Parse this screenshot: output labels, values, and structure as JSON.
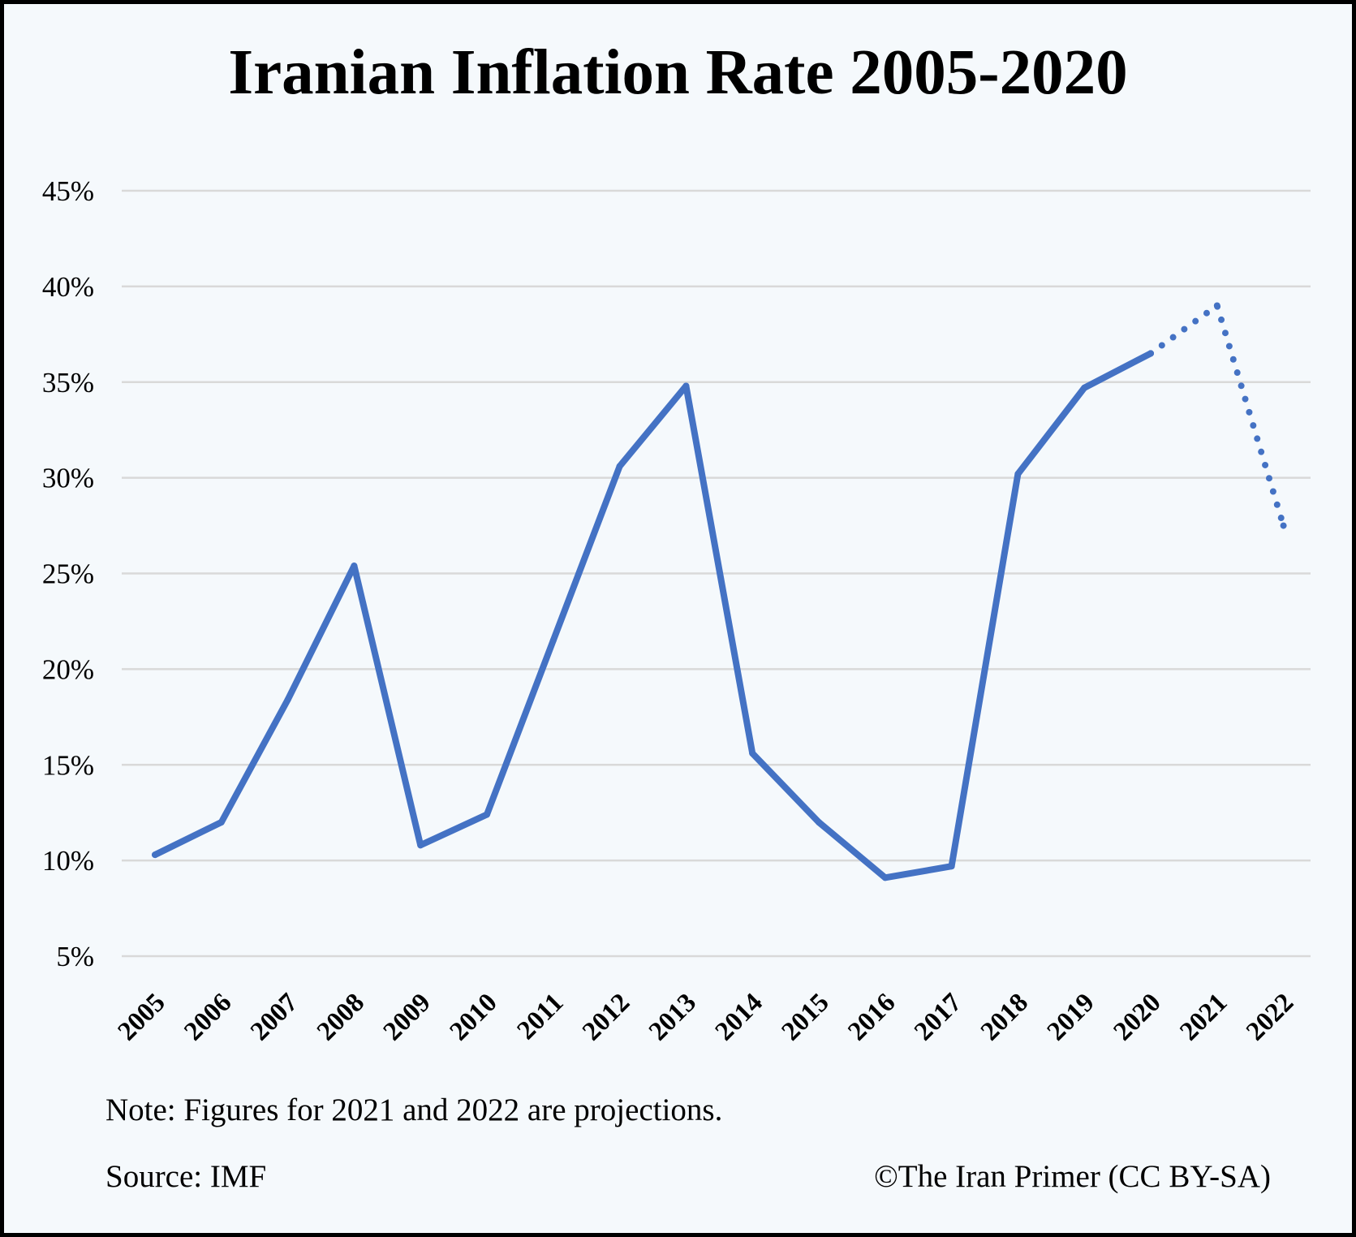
{
  "title": "Iranian Inflation Rate 2005-2020",
  "note": "Note: Figures for 2021 and 2022 are projections.",
  "source": "Source: IMF",
  "copyright": "©The Iran Primer (CC BY-SA)",
  "colors": {
    "line": "#4472c4",
    "grid": "#d9d9d9",
    "background": "#f5f9fc",
    "border": "#000000"
  },
  "chart_data": {
    "type": "line",
    "title": "Iranian Inflation Rate 2005-2020",
    "xlabel": "",
    "ylabel": "",
    "categories": [
      "2005",
      "2006",
      "2007",
      "2008",
      "2009",
      "2010",
      "2011",
      "2012",
      "2013",
      "2014",
      "2015",
      "2016",
      "2017",
      "2018",
      "2019",
      "2020",
      "2021",
      "2022"
    ],
    "series": [
      {
        "values": [
          10.3,
          12.0,
          18.4,
          25.4,
          10.8,
          12.4,
          21.5,
          30.6,
          34.8,
          15.6,
          12.0,
          9.1,
          9.7,
          30.2,
          34.7,
          36.5,
          39.0,
          27.5
        ],
        "projected_from_index": 15
      }
    ],
    "yticks": [
      "5%",
      "10%",
      "15%",
      "20%",
      "25%",
      "30%",
      "35%",
      "40%",
      "45%"
    ],
    "ylim": [
      5,
      45
    ],
    "grid": true,
    "legend": "none",
    "annotations": [
      "Figures for 2021 and 2022 are projections (dotted segment)."
    ]
  }
}
